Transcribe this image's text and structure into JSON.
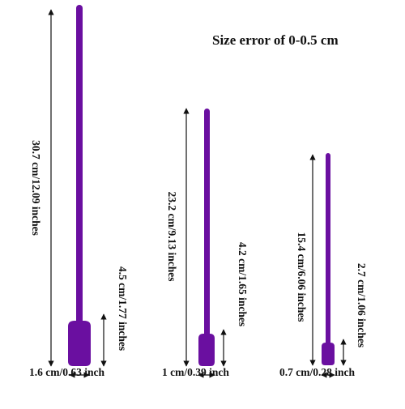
{
  "title": "Size error of 0-0.5 cm",
  "colors": {
    "spatula": "#6a0fa0",
    "spatula_highlight": "#8a2cc4",
    "arrow": "#111111"
  },
  "spatulas": [
    {
      "name": "large-spatula",
      "length_label": "30.7 cm/12.09 inches",
      "head_height_label": "4.5 cm/1.77 inches",
      "head_width_label": "1.6 cm/0.63 inch"
    },
    {
      "name": "medium-spatula",
      "length_label": "23.2 cm/9.13 inches",
      "head_height_label": "4.2 cm/1.65 inches",
      "head_width_label": "1 cm/0.39 inch"
    },
    {
      "name": "small-spatula",
      "length_label": "15.4 cm/6.06 inches",
      "head_height_label": "2.7 cm/1.06 inches",
      "head_width_label": "0.7 cm/0.28 inch"
    }
  ]
}
